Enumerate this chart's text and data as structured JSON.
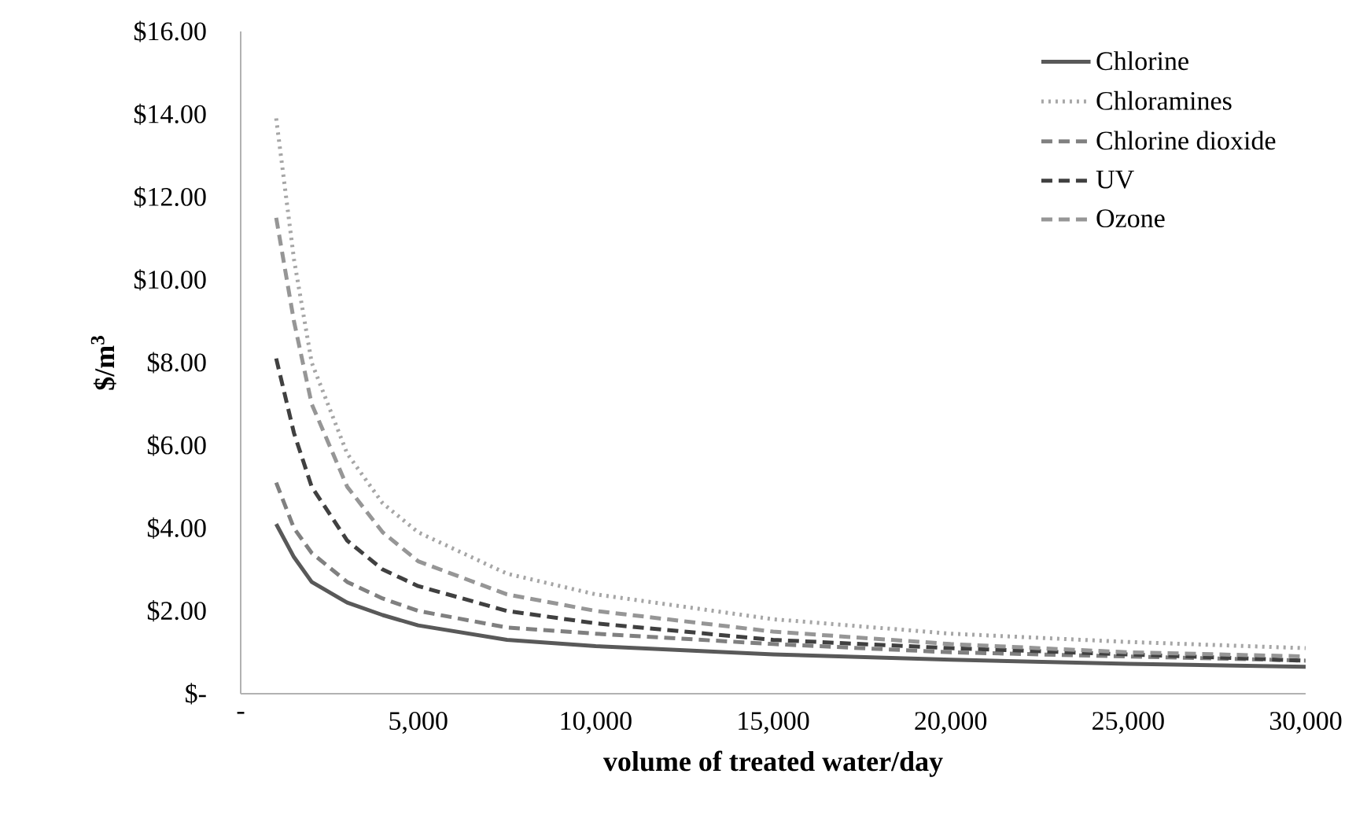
{
  "chart_data": {
    "type": "line",
    "xlabel": "volume of treated water/day",
    "ylabel": "$/m$^{3}$",
    "xlim": [
      0,
      30000
    ],
    "ylim": [
      0,
      16
    ],
    "xticks": [
      {
        "value": 0,
        "label": "-"
      },
      {
        "value": 5000,
        "label": "5,000"
      },
      {
        "value": 10000,
        "label": "10,000"
      },
      {
        "value": 15000,
        "label": "15,000"
      },
      {
        "value": 20000,
        "label": "20,000"
      },
      {
        "value": 25000,
        "label": "25,000"
      },
      {
        "value": 30000,
        "label": "30,000"
      }
    ],
    "yticks": [
      {
        "value": 0,
        "label": "$-"
      },
      {
        "value": 2,
        "label": "$2.00"
      },
      {
        "value": 4,
        "label": "$4.00"
      },
      {
        "value": 6,
        "label": "$6.00"
      },
      {
        "value": 8,
        "label": "$8.00"
      },
      {
        "value": 10,
        "label": "$10.00"
      },
      {
        "value": 12,
        "label": "$12.00"
      },
      {
        "value": 14,
        "label": "$14.00"
      },
      {
        "value": 16,
        "label": "$16.00"
      }
    ],
    "grid": false,
    "legend": "top right",
    "x": [
      1000,
      1500,
      2000,
      3000,
      4000,
      5000,
      7500,
      10000,
      15000,
      20000,
      25000,
      30000
    ],
    "series": [
      {
        "name": "Chlorine",
        "color": "#595959",
        "line_style": "solid",
        "values": [
          4.1,
          3.3,
          2.7,
          2.2,
          1.9,
          1.65,
          1.3,
          1.15,
          0.95,
          0.82,
          0.72,
          0.65
        ]
      },
      {
        "name": "Chloramines",
        "color": "#a6a6a6",
        "line_style": "dotted",
        "values": [
          13.9,
          10.5,
          8.0,
          5.8,
          4.6,
          3.9,
          2.9,
          2.4,
          1.8,
          1.45,
          1.25,
          1.1
        ]
      },
      {
        "name": "Chlorine dioxide",
        "color": "#808080",
        "line_style": "dashed",
        "values": [
          5.1,
          4.0,
          3.4,
          2.7,
          2.3,
          2.0,
          1.6,
          1.45,
          1.2,
          1.0,
          0.9,
          0.8
        ]
      },
      {
        "name": "UV",
        "color": "#404040",
        "line_style": "dashed",
        "values": [
          8.1,
          6.3,
          5.0,
          3.7,
          3.0,
          2.6,
          2.0,
          1.7,
          1.3,
          1.1,
          0.95,
          0.8
        ]
      },
      {
        "name": "Ozone",
        "color": "#969696",
        "line_style": "dashed",
        "values": [
          11.5,
          9.0,
          7.0,
          5.0,
          3.9,
          3.2,
          2.4,
          2.0,
          1.5,
          1.2,
          1.0,
          0.9
        ]
      }
    ]
  }
}
